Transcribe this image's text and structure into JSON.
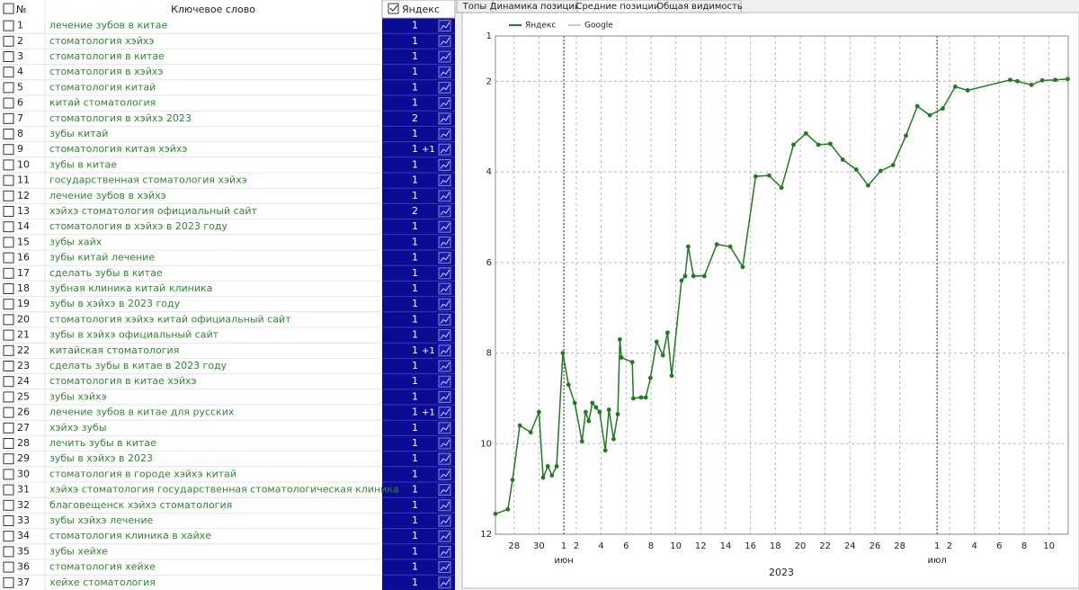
{
  "table": {
    "header": {
      "num": "№",
      "keyword": "Ключевое слово",
      "engine": "Яндекс"
    },
    "rows": [
      {
        "n": 1,
        "keyword": "лечение зубов в китае",
        "yandex": 1
      },
      {
        "n": 2,
        "keyword": "стоматология хэйхэ",
        "yandex": 1
      },
      {
        "n": 3,
        "keyword": "стоматология в китае",
        "yandex": 1
      },
      {
        "n": 4,
        "keyword": "стоматология в хэйхэ",
        "yandex": 1
      },
      {
        "n": 5,
        "keyword": "стоматология китай",
        "yandex": 1
      },
      {
        "n": 6,
        "keyword": "китай стоматология",
        "yandex": 1
      },
      {
        "n": 7,
        "keyword": "стоматология в хэйхэ 2023",
        "yandex": 2
      },
      {
        "n": 8,
        "keyword": "зубы китай",
        "yandex": 1
      },
      {
        "n": 9,
        "keyword": "стоматология китая хэйхэ",
        "yandex": 1,
        "delta": "+1"
      },
      {
        "n": 10,
        "keyword": "зубы в китае",
        "yandex": 1
      },
      {
        "n": 11,
        "keyword": "государственная стоматология хэйхэ",
        "yandex": 1
      },
      {
        "n": 12,
        "keyword": "лечение зубов в хэйхэ",
        "yandex": 1
      },
      {
        "n": 13,
        "keyword": "хэйхэ стоматология официальный сайт",
        "yandex": 2
      },
      {
        "n": 14,
        "keyword": "стоматология в хэйхэ в 2023 году",
        "yandex": 1
      },
      {
        "n": 15,
        "keyword": "зубы хайх",
        "yandex": 1
      },
      {
        "n": 16,
        "keyword": "зубы китай лечение",
        "yandex": 1
      },
      {
        "n": 17,
        "keyword": "сделать зубы в китае",
        "yandex": 1
      },
      {
        "n": 18,
        "keyword": "зубная клиника китай клиника",
        "yandex": 1
      },
      {
        "n": 19,
        "keyword": "зубы в хэйхэ в 2023 году",
        "yandex": 1
      },
      {
        "n": 20,
        "keyword": "стоматология хэйхэ китай официальный сайт",
        "yandex": 1
      },
      {
        "n": 21,
        "keyword": "зубы в хэйхэ официальный сайт",
        "yandex": 1
      },
      {
        "n": 22,
        "keyword": "китайская стоматология",
        "yandex": 1,
        "delta": "+1"
      },
      {
        "n": 23,
        "keyword": "сделать зубы в китае в 2023 году",
        "yandex": 1
      },
      {
        "n": 24,
        "keyword": "стоматология в китае хэйхэ",
        "yandex": 1
      },
      {
        "n": 25,
        "keyword": "зубы хэйхэ",
        "yandex": 1
      },
      {
        "n": 26,
        "keyword": "лечение зубов в китае для русских",
        "yandex": 1,
        "delta": "+1"
      },
      {
        "n": 27,
        "keyword": "хэйхэ зубы",
        "yandex": 1
      },
      {
        "n": 28,
        "keyword": "лечить зубы в китае",
        "yandex": 1
      },
      {
        "n": 29,
        "keyword": "зубы в хэйхэ в 2023",
        "yandex": 1
      },
      {
        "n": 30,
        "keyword": "стоматология в городе хэйхэ китай",
        "yandex": 1
      },
      {
        "n": 31,
        "keyword": "хэйхэ стоматология государственная стоматологическая клиника",
        "yandex": 1
      },
      {
        "n": 32,
        "keyword": "благовещенск хэйхэ стоматология",
        "yandex": 1
      },
      {
        "n": 33,
        "keyword": "зубы хэйхэ лечение",
        "yandex": 1
      },
      {
        "n": 34,
        "keyword": "стоматология клиника в хайхе",
        "yandex": 1
      },
      {
        "n": 35,
        "keyword": "зубы хейхе",
        "yandex": 1
      },
      {
        "n": 36,
        "keyword": "стоматология хейхе",
        "yandex": 1
      },
      {
        "n": 37,
        "keyword": "хейхе стоматология",
        "yandex": 1
      }
    ]
  },
  "tabs": {
    "items": [
      "Топы",
      "Динамика позиций",
      "Средние позиции",
      "Общая видимость"
    ],
    "active": 2
  },
  "chart_data": {
    "type": "line",
    "x_label": "2023",
    "x": [
      "2023-05-26T12:00",
      "2023-05-27T12:00",
      "2023-05-27T21:00",
      "2023-05-28T11:00",
      "2023-05-29T08:00",
      "2023-05-30T00:00",
      "2023-05-30T08:00",
      "2023-05-30T17:00",
      "2023-05-31T01:00",
      "2023-05-31T10:00",
      "2023-05-31T22:00",
      "2023-06-01T09:00",
      "2023-06-01T21:00",
      "2023-06-02T11:00",
      "2023-06-02T18:00",
      "2023-06-03T00:00",
      "2023-06-03T07:00",
      "2023-06-03T14:00",
      "2023-06-03T21:00",
      "2023-06-04T08:00",
      "2023-06-04T15:00",
      "2023-06-05T00:00",
      "2023-06-05T08:00",
      "2023-06-05T12:00",
      "2023-06-05T15:00",
      "2023-06-06T12:00",
      "2023-06-06T14:00",
      "2023-06-07T05:00",
      "2023-06-07T14:00",
      "2023-06-07T23:00",
      "2023-06-08T11:00",
      "2023-06-08T23:00",
      "2023-06-09T08:00",
      "2023-06-09T16:00",
      "2023-06-10T11:00",
      "2023-06-10T18:00",
      "2023-06-11T00:00",
      "2023-06-11T10:00",
      "2023-06-12T07:00",
      "2023-06-13T07:00",
      "2023-06-14T09:00",
      "2023-06-15T09:00",
      "2023-06-16T10:00",
      "2023-06-17T12:00",
      "2023-06-18T12:00",
      "2023-06-19T11:00",
      "2023-06-20T11:00",
      "2023-06-21T11:00",
      "2023-06-22T10:00",
      "2023-06-23T10:00",
      "2023-06-24T12:00",
      "2023-06-25T11:00",
      "2023-06-26T11:00",
      "2023-06-27T11:00",
      "2023-06-28T12:00",
      "2023-06-29T10:00",
      "2023-06-30T10:00",
      "2023-07-01T11:00",
      "2023-07-02T11:00",
      "2023-07-03T11:00",
      "2023-07-06T21:00",
      "2023-07-07T11:00",
      "2023-07-08T14:00",
      "2023-07-09T11:00",
      "2023-07-10T12:00",
      "2023-07-11T12:00"
    ],
    "series": [
      {
        "name": "Яндекс",
        "color": "#1e7d1e",
        "values": [
          11.55,
          11.45,
          10.8,
          9.6,
          9.75,
          9.3,
          10.75,
          10.5,
          10.7,
          10.5,
          8.0,
          8.7,
          9.1,
          9.95,
          9.3,
          9.5,
          9.1,
          9.2,
          9.3,
          10.15,
          9.25,
          9.9,
          9.35,
          7.7,
          8.1,
          8.2,
          9.0,
          8.98,
          8.98,
          8.55,
          7.75,
          8.05,
          7.55,
          8.5,
          6.4,
          6.3,
          5.65,
          6.3,
          6.3,
          5.6,
          5.65,
          6.1,
          4.1,
          4.08,
          4.35,
          3.4,
          3.15,
          3.4,
          3.38,
          3.73,
          3.95,
          4.3,
          3.98,
          3.85,
          3.2,
          2.55,
          2.75,
          2.6,
          2.12,
          2.2,
          1.97,
          2.0,
          2.08,
          1.98,
          1.97,
          1.95
        ]
      },
      {
        "name": "Google",
        "color": "#c8c8c8",
        "values": [
          null,
          null,
          null,
          null,
          null,
          null,
          null,
          null,
          null,
          null,
          null,
          null,
          null,
          null,
          null,
          null,
          null,
          null,
          null,
          null,
          null,
          null,
          null,
          null,
          null,
          null,
          null,
          null,
          null,
          null,
          null,
          null,
          null,
          null,
          null,
          null,
          null,
          null,
          null,
          null,
          null,
          null,
          null,
          null,
          null,
          null,
          null,
          null,
          null,
          null,
          null,
          null,
          null,
          null,
          null,
          null,
          null,
          null,
          null,
          null,
          null,
          null,
          null,
          null,
          null,
          null
        ]
      }
    ],
    "xlim": [
      "2023-05-26T12:00",
      "2023-07-11T13:00"
    ],
    "xticks": [
      {
        "value": "2023-05-28T00:00",
        "label": "28"
      },
      {
        "value": "2023-05-30T00:00",
        "label": "30"
      },
      {
        "value": "2023-06-01T00:00",
        "label": "1"
      },
      {
        "value": "2023-06-02T00:00",
        "label": "2"
      },
      {
        "value": "2023-06-04T00:00",
        "label": "4"
      },
      {
        "value": "2023-06-06T00:00",
        "label": "6"
      },
      {
        "value": "2023-06-08T00:00",
        "label": "8"
      },
      {
        "value": "2023-06-10T00:00",
        "label": "10"
      },
      {
        "value": "2023-06-12T00:00",
        "label": "12"
      },
      {
        "value": "2023-06-14T00:00",
        "label": "14"
      },
      {
        "value": "2023-06-16T00:00",
        "label": "16"
      },
      {
        "value": "2023-06-18T00:00",
        "label": "18"
      },
      {
        "value": "2023-06-20T00:00",
        "label": "20"
      },
      {
        "value": "2023-06-22T00:00",
        "label": "22"
      },
      {
        "value": "2023-06-24T00:00",
        "label": "24"
      },
      {
        "value": "2023-06-26T00:00",
        "label": "26"
      },
      {
        "value": "2023-06-28T00:00",
        "label": "28"
      },
      {
        "value": "2023-07-01T00:00",
        "label": "1"
      },
      {
        "value": "2023-07-02T00:00",
        "label": "2"
      },
      {
        "value": "2023-07-04T00:00",
        "label": "4"
      },
      {
        "value": "2023-07-06T00:00",
        "label": "6"
      },
      {
        "value": "2023-07-08T00:00",
        "label": "8"
      },
      {
        "value": "2023-07-10T00:00",
        "label": "10"
      }
    ],
    "month_ticks": [
      {
        "value": "2023-06-01T00:00",
        "label": "июн"
      },
      {
        "value": "2023-07-01T00:00",
        "label": "июл"
      }
    ],
    "ylim": [
      12,
      1
    ],
    "yticks": [
      1,
      2,
      4,
      6,
      8,
      10,
      12
    ],
    "grid": true
  }
}
